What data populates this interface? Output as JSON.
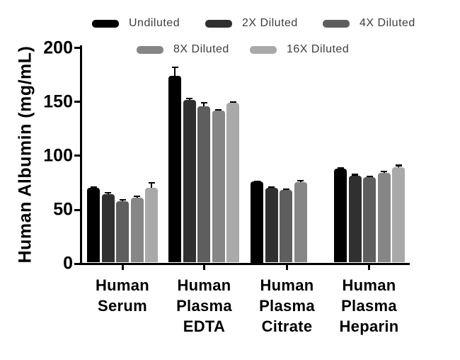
{
  "chart_data": {
    "type": "bar",
    "title": "",
    "ylabel": "Human Albumin (mg/mL)",
    "xlabel": "",
    "ylim": [
      0,
      200
    ],
    "grid": false,
    "legend_position": "top",
    "background_color": "#ffffff",
    "axis_color": "#000000",
    "yticks": [
      {
        "value": 0,
        "label": "0"
      },
      {
        "value": 50,
        "label": "50"
      },
      {
        "value": 100,
        "label": "100"
      },
      {
        "value": 150,
        "label": "150"
      },
      {
        "value": 200,
        "label": "200"
      }
    ],
    "categories": [
      {
        "name": "Human Serum",
        "label_lines": [
          "Human",
          "Serum"
        ]
      },
      {
        "name": "Human Plasma EDTA",
        "label_lines": [
          "Human",
          "Plasma",
          "EDTA"
        ]
      },
      {
        "name": "Human Plasma Citrate",
        "label_lines": [
          "Human",
          "Plasma",
          "Citrate"
        ]
      },
      {
        "name": "Human Plasma Heparin",
        "label_lines": [
          "Human",
          "Plasma",
          "Heparin"
        ]
      }
    ],
    "series": [
      {
        "name": "Undiluted",
        "color": "#000000",
        "values": [
          69,
          173,
          75,
          87
        ],
        "errors": [
          1,
          8,
          0.5,
          1
        ]
      },
      {
        "name": "2X Diluted",
        "color": "#303030",
        "values": [
          63.5,
          151,
          69,
          80.5
        ],
        "errors": [
          1,
          1,
          1,
          1
        ]
      },
      {
        "name": "4X Diluted",
        "color": "#5e5e5e",
        "values": [
          57,
          145,
          67,
          79
        ],
        "errors": [
          1,
          3,
          1,
          1
        ]
      },
      {
        "name": "8X Diluted",
        "color": "#868686",
        "values": [
          60,
          141,
          74.5,
          83
        ],
        "errors": [
          1.5,
          0.5,
          1.5,
          1.5
        ]
      },
      {
        "name": "16X Diluted",
        "color": "#a9a9a9",
        "values": [
          69,
          148,
          null,
          88.5
        ],
        "errors": [
          5,
          0.5,
          null,
          1.5
        ]
      }
    ]
  }
}
